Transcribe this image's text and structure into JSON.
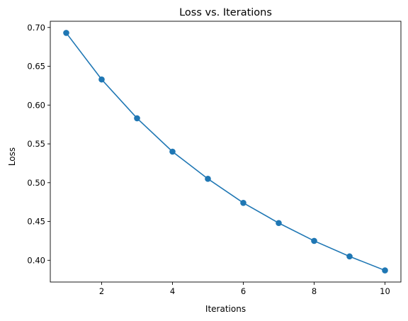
{
  "chart_data": {
    "type": "line",
    "title": "Loss vs. Iterations",
    "xlabel": "Iterations",
    "ylabel": "Loss",
    "xlim": [
      0.55,
      10.45
    ],
    "ylim": [
      0.372,
      0.708
    ],
    "x_ticks": [
      2,
      4,
      6,
      8,
      10
    ],
    "y_ticks": [
      0.4,
      0.45,
      0.5,
      0.55,
      0.6,
      0.65,
      0.7
    ],
    "grid": false,
    "marker": "circle",
    "series_color": "#1f77b4",
    "series": [
      {
        "x": [
          1,
          2,
          3,
          4,
          5,
          6,
          7,
          8,
          9,
          10
        ],
        "values": [
          0.693,
          0.633,
          0.583,
          0.54,
          0.505,
          0.474,
          0.448,
          0.425,
          0.405,
          0.387
        ]
      }
    ]
  }
}
